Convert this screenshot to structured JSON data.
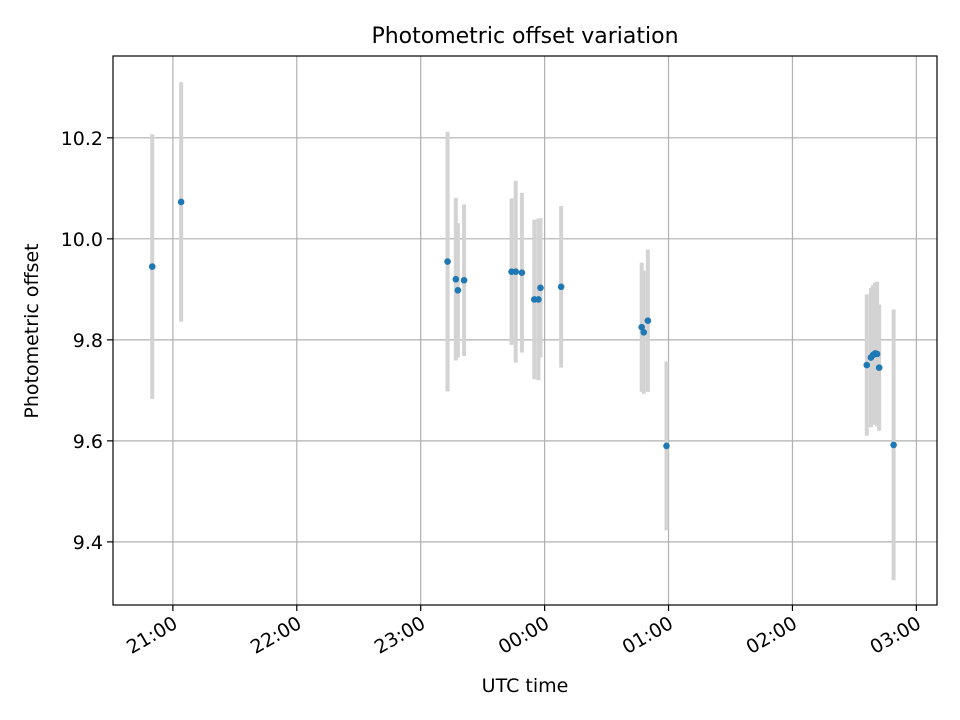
{
  "chart_data": {
    "type": "scatter",
    "title": "Photometric offset variation",
    "xlabel": "UTC time",
    "ylabel": "Photometric offset",
    "x_type": "time",
    "xlim": [
      "20:31",
      "03:10"
    ],
    "ylim": [
      9.275,
      10.362
    ],
    "x_ticks": [
      "21:00",
      "22:00",
      "23:00",
      "00:00",
      "01:00",
      "02:00",
      "03:00"
    ],
    "y_ticks": [
      9.4,
      9.6,
      9.8,
      10.0,
      10.2
    ],
    "grid": true,
    "legend": "none",
    "points": [
      {
        "t": "20:50",
        "y": 9.945,
        "err": 0.262
      },
      {
        "t": "21:04",
        "y": 10.073,
        "err": 0.237
      },
      {
        "t": "23:13",
        "y": 9.955,
        "err": 0.257
      },
      {
        "t": "23:17",
        "y": 9.92,
        "err": 0.161
      },
      {
        "t": "23:18",
        "y": 9.898,
        "err": 0.133
      },
      {
        "t": "23:21",
        "y": 9.918,
        "err": 0.15
      },
      {
        "t": "23:44",
        "y": 9.935,
        "err": 0.145
      },
      {
        "t": "23:46",
        "y": 9.935,
        "err": 0.18
      },
      {
        "t": "23:49",
        "y": 9.933,
        "err": 0.158
      },
      {
        "t": "23:55",
        "y": 9.88,
        "err": 0.158
      },
      {
        "t": "23:57",
        "y": 9.88,
        "err": 0.16
      },
      {
        "t": "23:58",
        "y": 9.903,
        "err": 0.138
      },
      {
        "t": "00:08",
        "y": 9.905,
        "err": 0.16
      },
      {
        "t": "00:47",
        "y": 9.825,
        "err": 0.128
      },
      {
        "t": "00:48",
        "y": 9.815,
        "err": 0.122
      },
      {
        "t": "00:50",
        "y": 9.838,
        "err": 0.141
      },
      {
        "t": "00:59",
        "y": 9.59,
        "err": 0.167
      },
      {
        "t": "02:36",
        "y": 9.75,
        "err": 0.14
      },
      {
        "t": "02:38",
        "y": 9.765,
        "err": 0.138
      },
      {
        "t": "02:39",
        "y": 9.77,
        "err": 0.138
      },
      {
        "t": "02:40",
        "y": 9.773,
        "err": 0.14
      },
      {
        "t": "02:41",
        "y": 9.772,
        "err": 0.143
      },
      {
        "t": "02:42",
        "y": 9.745,
        "err": 0.125
      },
      {
        "t": "02:49",
        "y": 9.592,
        "err": 0.268
      }
    ],
    "colors": {
      "marker": "#1f77b4",
      "errorbar": "#d3d3d3",
      "grid": "#b0b0b0",
      "axes": "#000000"
    }
  }
}
